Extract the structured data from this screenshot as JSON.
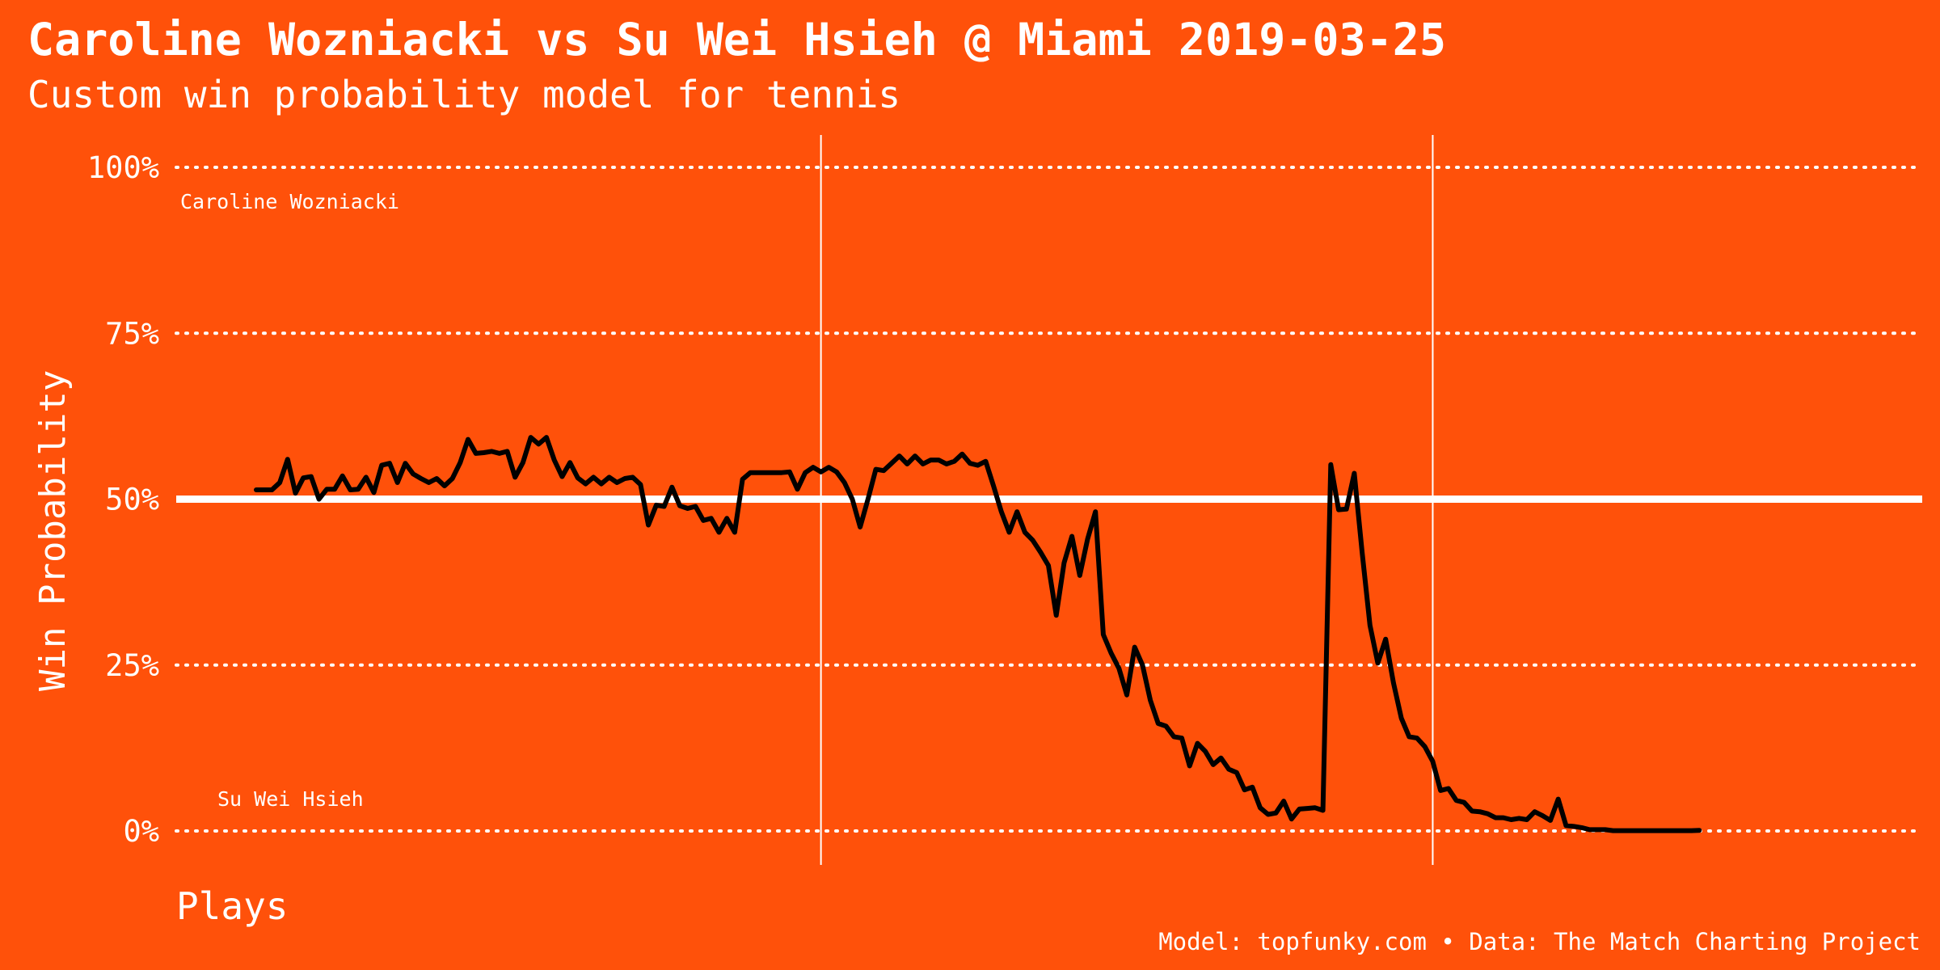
{
  "colors": {
    "background": "#FF510A",
    "text": "#ffffff",
    "line": "#000000",
    "grid": "#ffffff"
  },
  "chart_data": {
    "type": "line",
    "title": "Caroline Wozniacki vs Su Wei Hsieh @ Miami 2019-03-25",
    "subtitle": "Custom win probability model for tennis",
    "xlabel": "Plays",
    "ylabel": "Win Probability",
    "caption": "Model: topfunky.com • Data: The Match Charting Project",
    "top_label": "Caroline Wozniacki",
    "bottom_label": "Su Wei Hsieh",
    "yticks": [
      0,
      25,
      50,
      75,
      100
    ],
    "ytick_labels": [
      "0%",
      "25%",
      "50%",
      "75%",
      "100%"
    ],
    "ylim": [
      0,
      100
    ],
    "xlim": [
      0,
      202
    ],
    "set_breaks": [
      72,
      150
    ],
    "reference_line": 50,
    "grid": "horizontal dotted",
    "series": [
      {
        "values": [
          51.4,
          51.4,
          51.4,
          52.5,
          56.0,
          50.9,
          53.2,
          53.4,
          50.0,
          51.5,
          51.5,
          53.5,
          51.4,
          51.5,
          53.3,
          51.0,
          55.1,
          55.4,
          52.5,
          55.4,
          53.8,
          53.1,
          52.5,
          53.1,
          52.0,
          53.1,
          55.5,
          59.0,
          56.9,
          57.0,
          57.2,
          56.9,
          57.2,
          53.3,
          55.5,
          59.3,
          58.3,
          59.3,
          55.9,
          53.4,
          55.5,
          53.2,
          52.3,
          53.3,
          52.3,
          53.3,
          52.5,
          53.1,
          53.3,
          52.2,
          46.1,
          49.1,
          48.9,
          51.8,
          49.0,
          48.6,
          48.9,
          46.8,
          47.1,
          45.0,
          47.1,
          45.0,
          53.0,
          54.0,
          54.0,
          54.0,
          54.0,
          54.0,
          54.1,
          51.5,
          54.0,
          54.8,
          54.1,
          54.8,
          54.1,
          52.5,
          50.0,
          45.8,
          50.0,
          54.5,
          54.3,
          55.4,
          56.5,
          55.3,
          56.5,
          55.3,
          55.9,
          55.9,
          55.3,
          55.7,
          56.8,
          55.4,
          55.1,
          55.7,
          52.0,
          48.1,
          45.0,
          48.1,
          45.0,
          43.8,
          42.0,
          40.0,
          32.5,
          40.4,
          44.4,
          38.5,
          44.0,
          48.1,
          29.6,
          26.8,
          24.5,
          20.5,
          27.7,
          25.0,
          19.7,
          16.2,
          15.8,
          14.2,
          14.0,
          9.8,
          13.2,
          12.0,
          10.0,
          11.0,
          9.3,
          8.8,
          6.2,
          6.6,
          3.5,
          2.5,
          2.7,
          4.5,
          1.8,
          3.3,
          3.4,
          3.5,
          3.1,
          55.2,
          48.4,
          48.5,
          53.9,
          42.0,
          31.0,
          25.3,
          28.9,
          22.3,
          17.0,
          14.2,
          14.0,
          12.7,
          10.5,
          6.1,
          6.4,
          4.6,
          4.3,
          3.0,
          2.9,
          2.6,
          2.0,
          2.0,
          1.7,
          1.9,
          1.7,
          2.9,
          2.3,
          1.6,
          4.8,
          0.8,
          0.7,
          0.5,
          0.2,
          0.2,
          0.2,
          0.05,
          0.05,
          0.05,
          0.05,
          0.05,
          0.05,
          0.05,
          0.05,
          0.05,
          0.05,
          0.05,
          0.1
        ]
      }
    ]
  }
}
